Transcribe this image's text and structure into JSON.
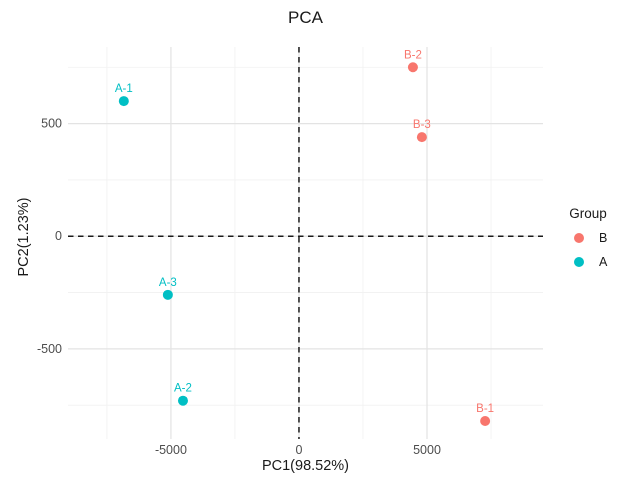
{
  "title": "PCA",
  "colors": {
    "group_b": "#F8766D",
    "group_a": "#00BFC4",
    "grid_major": "#E3E3E3",
    "grid_minor": "#F1F1F1",
    "reference_line": "#1a1a1a",
    "tick_label": "#4D4D4D"
  },
  "chart_data": {
    "type": "scatter",
    "title": "PCA",
    "xlabel": "PC1(98.52%)",
    "ylabel": "PC2(1.23%)",
    "xlim": [
      -9020,
      9530
    ],
    "ylim": [
      -900,
      840
    ],
    "x_major_ticks": [
      -5000,
      0,
      5000
    ],
    "x_minor_ticks": [
      -7500,
      -2500,
      2500,
      7500
    ],
    "y_major_ticks": [
      -500,
      0,
      500
    ],
    "y_minor_ticks": [
      -750,
      -250,
      250,
      750
    ],
    "x_tick_labels": [
      "-5000",
      "0",
      "5000"
    ],
    "y_tick_labels": [
      "-500",
      "0",
      "500"
    ],
    "grid": true,
    "reference_lines": [
      {
        "axis": "x",
        "value": 0,
        "style": "dashed"
      },
      {
        "axis": "y",
        "value": 0,
        "style": "dashed"
      }
    ],
    "legend": {
      "title": "Group",
      "position": "right",
      "entries": [
        {
          "label": "B",
          "color": "#F8766D"
        },
        {
          "label": "A",
          "color": "#00BFC4"
        }
      ]
    },
    "series": [
      {
        "name": "B",
        "color": "#F8766D",
        "points": [
          {
            "label": "B-1",
            "x": 7270,
            "y": -820
          },
          {
            "label": "B-2",
            "x": 4450,
            "y": 750
          },
          {
            "label": "B-3",
            "x": 4800,
            "y": 440
          }
        ]
      },
      {
        "name": "A",
        "color": "#00BFC4",
        "points": [
          {
            "label": "A-1",
            "x": -6840,
            "y": 600
          },
          {
            "label": "A-2",
            "x": -4530,
            "y": -730
          },
          {
            "label": "A-3",
            "x": -5120,
            "y": -260
          }
        ]
      }
    ]
  }
}
